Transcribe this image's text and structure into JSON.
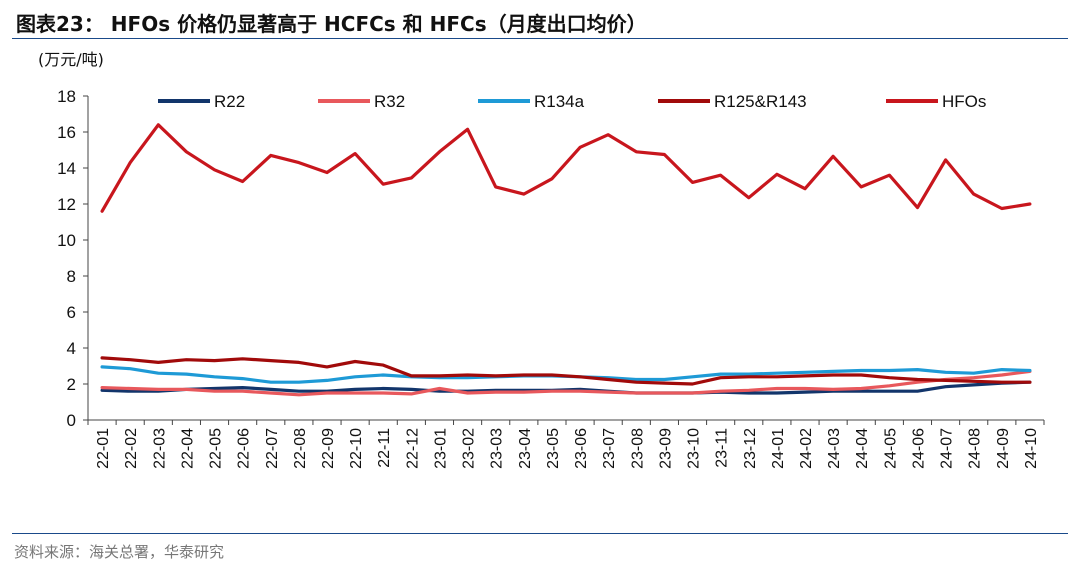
{
  "title": "图表23： HFOs 价格仍显著高于 HCFCs 和 HFCs（月度出口均价）",
  "source": "资料来源：海关总署，华泰研究",
  "chart_data": {
    "type": "line",
    "unit_label": "(万元/吨)",
    "ylim": [
      0,
      18
    ],
    "yticks": [
      0,
      2,
      4,
      6,
      8,
      10,
      12,
      14,
      16,
      18
    ],
    "legend_position": "top",
    "grid": false,
    "categories": [
      "22-01",
      "22-02",
      "22-03",
      "22-04",
      "22-05",
      "22-06",
      "22-07",
      "22-08",
      "22-09",
      "22-10",
      "22-11",
      "22-12",
      "23-01",
      "23-02",
      "23-03",
      "23-04",
      "23-05",
      "23-06",
      "23-07",
      "23-08",
      "23-09",
      "23-10",
      "23-11",
      "23-12",
      "24-01",
      "24-02",
      "24-03",
      "24-04",
      "24-05",
      "24-06",
      "24-07",
      "24-08",
      "24-09",
      "24-10"
    ],
    "series": [
      {
        "name": "R22",
        "color": "#12356b",
        "values": [
          1.65,
          1.6,
          1.6,
          1.7,
          1.75,
          1.8,
          1.7,
          1.6,
          1.6,
          1.7,
          1.75,
          1.7,
          1.6,
          1.6,
          1.65,
          1.65,
          1.65,
          1.7,
          1.6,
          1.5,
          1.5,
          1.5,
          1.55,
          1.5,
          1.5,
          1.55,
          1.6,
          1.6,
          1.6,
          1.6,
          1.85,
          1.95,
          2.05,
          2.1
        ]
      },
      {
        "name": "R32",
        "color": "#e8585c",
        "values": [
          1.8,
          1.75,
          1.7,
          1.7,
          1.6,
          1.6,
          1.5,
          1.4,
          1.5,
          1.5,
          1.5,
          1.45,
          1.75,
          1.5,
          1.55,
          1.55,
          1.6,
          1.6,
          1.55,
          1.5,
          1.5,
          1.5,
          1.6,
          1.65,
          1.75,
          1.75,
          1.7,
          1.75,
          1.9,
          2.1,
          2.25,
          2.35,
          2.5,
          2.7
        ]
      },
      {
        "name": "R134a",
        "color": "#1e9ad6",
        "values": [
          2.95,
          2.85,
          2.6,
          2.55,
          2.4,
          2.3,
          2.1,
          2.1,
          2.2,
          2.4,
          2.5,
          2.4,
          2.35,
          2.35,
          2.4,
          2.45,
          2.45,
          2.4,
          2.35,
          2.25,
          2.25,
          2.4,
          2.55,
          2.55,
          2.6,
          2.65,
          2.7,
          2.75,
          2.75,
          2.8,
          2.65,
          2.6,
          2.8,
          2.75
        ]
      },
      {
        "name": "R125&R143",
        "color": "#a10a0a",
        "values": [
          3.45,
          3.35,
          3.2,
          3.35,
          3.3,
          3.4,
          3.3,
          3.2,
          2.95,
          3.25,
          3.05,
          2.45,
          2.45,
          2.5,
          2.45,
          2.5,
          2.5,
          2.4,
          2.25,
          2.1,
          2.05,
          2.0,
          2.35,
          2.4,
          2.4,
          2.45,
          2.5,
          2.5,
          2.35,
          2.25,
          2.2,
          2.15,
          2.1,
          2.1
        ]
      },
      {
        "name": "HFOs",
        "color": "#c8161d",
        "values": [
          11.6,
          14.3,
          16.4,
          14.9,
          13.9,
          13.25,
          14.7,
          14.3,
          13.75,
          14.8,
          13.1,
          13.45,
          14.9,
          16.15,
          12.95,
          12.55,
          13.4,
          15.15,
          15.85,
          14.9,
          14.75,
          13.2,
          13.6,
          12.35,
          13.65,
          12.85,
          14.65,
          12.95,
          13.6,
          11.8,
          14.45,
          12.55,
          11.75,
          12.0
        ]
      }
    ]
  }
}
